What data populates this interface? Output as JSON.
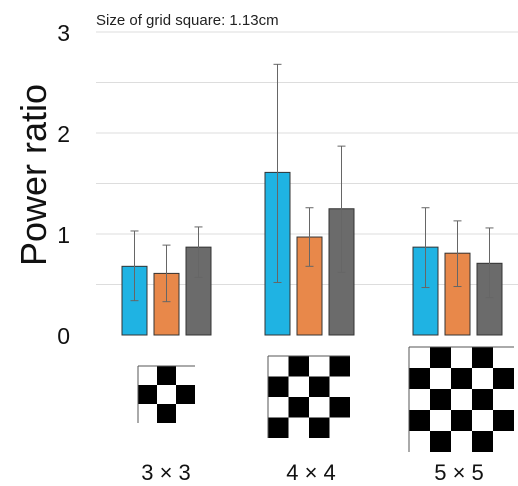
{
  "chart_data": {
    "type": "bar",
    "title": "",
    "note": "Size of grid square: 1.13cm",
    "xlabel": "",
    "ylabel": "Power ratio",
    "ylim": [
      0,
      3
    ],
    "yticks": [
      "0",
      "1",
      "2",
      "3"
    ],
    "grid": true,
    "categories": [
      "3 × 3",
      "4 × 4",
      "5 × 5"
    ],
    "series": [
      {
        "color": "#1fb3e3",
        "values": [
          0.68,
          1.61,
          0.87
        ],
        "err_low": [
          0.34,
          1.09,
          0.4
        ],
        "err_high": [
          0.35,
          1.07,
          0.39
        ]
      },
      {
        "color": "#e8884a",
        "values": [
          0.61,
          0.97,
          0.81
        ],
        "err_low": [
          0.28,
          0.29,
          0.33
        ],
        "err_high": [
          0.28,
          0.29,
          0.32
        ]
      },
      {
        "color": "#6b6b6b",
        "values": [
          0.87,
          1.25,
          0.71
        ],
        "err_low": [
          0.3,
          0.63,
          0.34
        ],
        "err_high": [
          0.2,
          0.62,
          0.35
        ]
      }
    ],
    "patterns": [
      3,
      4,
      5
    ]
  }
}
